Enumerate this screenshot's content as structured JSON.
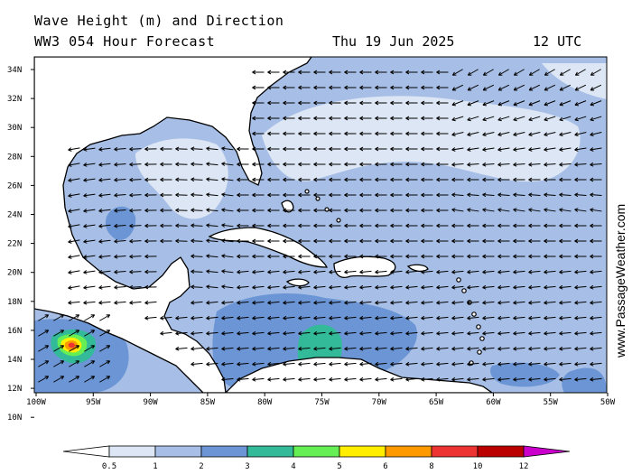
{
  "header": {
    "title": "Wave Height (m) and Direction",
    "subtitle": "WW3 054 Hour Forecast",
    "date": "Thu 19 Jun 2025",
    "time": "12 UTC"
  },
  "credit": "www.PassageWeather.com",
  "axes": {
    "lat_labels": [
      "34N",
      "32N",
      "30N",
      "28N",
      "26N",
      "24N",
      "22N",
      "20N",
      "18N",
      "16N",
      "14N",
      "12N",
      "10N"
    ],
    "lon_labels": [
      "100W",
      "95W",
      "90W",
      "85W",
      "80W",
      "75W",
      "70W",
      "65W",
      "60W",
      "55W",
      "50W"
    ]
  },
  "legend": {
    "labels": [
      "0.5",
      "1",
      "2",
      "3",
      "4",
      "5",
      "6",
      "8",
      "10",
      "12"
    ],
    "colors": [
      "#ffffff",
      "#dde6f4",
      "#a7bfe6",
      "#6b95d4",
      "#33bb99",
      "#66ee55",
      "#ffee00",
      "#ff9900",
      "#ee3333",
      "#bb0000",
      "#cc00cc"
    ]
  },
  "colors": {
    "band_0_5_1": "#dde6f4",
    "band_1_2": "#a7bfe6",
    "band_2_3": "#6b95d4",
    "band_3_4": "#33bb99",
    "band_4_5": "#66ee55",
    "band_5_6": "#ffee00",
    "band_6_8": "#ff9900",
    "land": "#ffffff"
  }
}
